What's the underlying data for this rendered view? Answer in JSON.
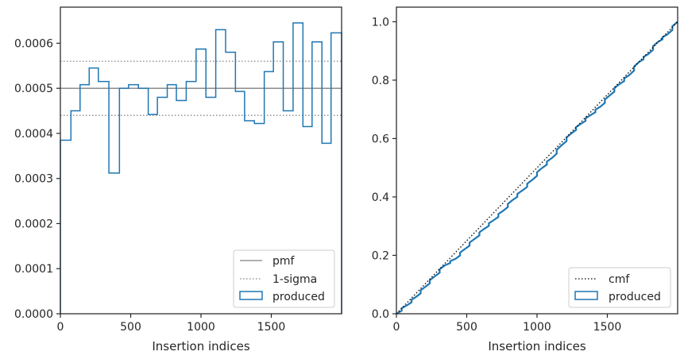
{
  "colors": {
    "produced": "#1f77b4",
    "pmf": "#808080",
    "sigma": "#808080",
    "cmf": "#000000",
    "axis": "#262626"
  },
  "chart_data": [
    {
      "type": "line",
      "panel": "left",
      "xlabel": "Insertion indices",
      "ylabel": "",
      "xlim": [
        0,
        2000
      ],
      "ylim": [
        0,
        0.00068
      ],
      "xticks": [
        0,
        500,
        1000,
        1500
      ],
      "xtick_labels": [
        "0",
        "500",
        "1000",
        "1500"
      ],
      "yticks": [
        0,
        0.0001,
        0.0002,
        0.0003,
        0.0004,
        0.0005,
        0.0006
      ],
      "ytick_labels": [
        "0.0000",
        "0.0001",
        "0.0002",
        "0.0003",
        "0.0004",
        "0.0005",
        "0.0006"
      ],
      "pmf": 0.0005,
      "sigma_low": 0.00044,
      "sigma_high": 0.00056,
      "produced_bin_edges": [
        0,
        75,
        140,
        205,
        270,
        345,
        420,
        485,
        555,
        625,
        690,
        760,
        825,
        895,
        965,
        1035,
        1105,
        1175,
        1245,
        1310,
        1380,
        1450,
        1515,
        1585,
        1655,
        1725,
        1790,
        1860,
        1925,
        2000
      ],
      "produced_values": [
        0.000385,
        0.00045,
        0.000508,
        0.000545,
        0.000515,
        0.000312,
        0.0005,
        0.000508,
        0.0005,
        0.000442,
        0.00048,
        0.000508,
        0.000473,
        0.000515,
        0.000587,
        0.00048,
        0.00063,
        0.00058,
        0.000493,
        0.000428,
        0.000422,
        0.000537,
        0.000603,
        0.00045,
        0.000645,
        0.000415,
        0.000603,
        0.000378,
        0.000623
      ],
      "legend": {
        "placement": "lower-right",
        "entries": [
          "pmf",
          "1-sigma",
          "produced"
        ]
      }
    },
    {
      "type": "line",
      "panel": "right",
      "xlabel": "Insertion indices",
      "ylabel": "",
      "xlim": [
        0,
        2000
      ],
      "ylim": [
        0,
        1.05
      ],
      "xticks": [
        0,
        500,
        1000,
        1500
      ],
      "xtick_labels": [
        "0",
        "500",
        "1000",
        "1500"
      ],
      "yticks": [
        0,
        0.2,
        0.4,
        0.6,
        0.8,
        1.0
      ],
      "ytick_labels": [
        "0.0",
        "0.2",
        "0.4",
        "0.6",
        "0.8",
        "1.0"
      ],
      "cmf": {
        "x": [
          0,
          2000
        ],
        "y": [
          0,
          1.0
        ]
      },
      "produced_cdf": {
        "x": [
          0,
          75,
          140,
          205,
          270,
          345,
          420,
          485,
          555,
          625,
          690,
          760,
          825,
          895,
          965,
          1035,
          1105,
          1175,
          1245,
          1310,
          1380,
          1450,
          1515,
          1585,
          1655,
          1725,
          1790,
          1860,
          1925,
          2000
        ],
        "y": [
          0,
          0.029,
          0.058,
          0.092,
          0.127,
          0.166,
          0.188,
          0.221,
          0.256,
          0.291,
          0.32,
          0.353,
          0.389,
          0.422,
          0.458,
          0.499,
          0.533,
          0.577,
          0.618,
          0.65,
          0.68,
          0.709,
          0.747,
          0.786,
          0.817,
          0.862,
          0.889,
          0.931,
          0.956,
          1.0
        ]
      },
      "legend": {
        "placement": "lower-right",
        "entries": [
          "cmf",
          "produced"
        ]
      }
    }
  ]
}
